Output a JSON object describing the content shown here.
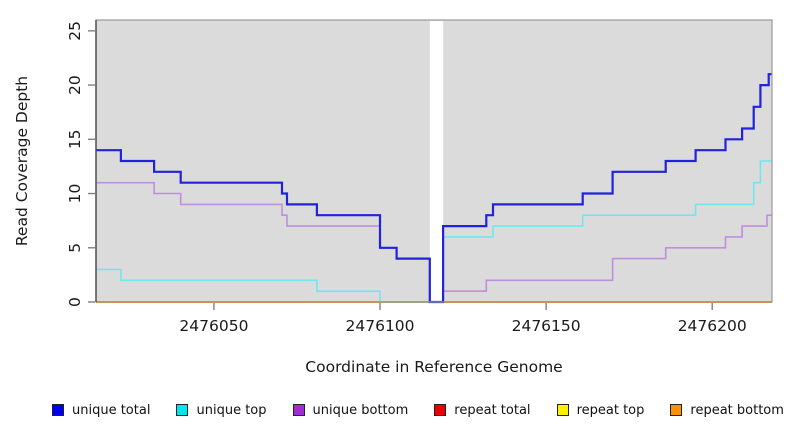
{
  "chart_data": {
    "type": "line",
    "subtype": "step-coverage",
    "title": "",
    "xlabel": "Coordinate in Reference Genome",
    "ylabel": "Read Coverage Depth",
    "x_range": [
      2476014.5,
      2476218
    ],
    "ylim": [
      0,
      26
    ],
    "x_ticks": [
      "2476050",
      "2476100",
      "2476150",
      "2476200"
    ],
    "x_tick_values": [
      2476050,
      2476100,
      2476150,
      2476200
    ],
    "y_ticks": [
      "0",
      "5",
      "10",
      "15",
      "20",
      "25"
    ],
    "y_tick_values": [
      0,
      5,
      10,
      15,
      20,
      25
    ],
    "grid": false,
    "plot_background": "#DBDBDB",
    "frame_color": "#999999",
    "tick_color": "#808080",
    "gap_region": {
      "x_start": 2476115,
      "x_end": 2476119
    },
    "zero_overlap_segment": {
      "x_start": 2476100,
      "x_end": 2476115,
      "y": 0,
      "color": "#7CC87C"
    },
    "series": [
      {
        "name": "unique total",
        "line_color": "#2222DD",
        "legend_color": "#0000EE",
        "width": 2.2,
        "points": [
          [
            2476014.5,
            14
          ],
          [
            2476022,
            13
          ],
          [
            2476032,
            12
          ],
          [
            2476040,
            11
          ],
          [
            2476070.5,
            10
          ],
          [
            2476072,
            9
          ],
          [
            2476081,
            8
          ],
          [
            2476100,
            5
          ],
          [
            2476105,
            4
          ],
          [
            2476115,
            0
          ],
          [
            2476119,
            7
          ],
          [
            2476132,
            8
          ],
          [
            2476134,
            9
          ],
          [
            2476161,
            10
          ],
          [
            2476170,
            12
          ],
          [
            2476186,
            13
          ],
          [
            2476195,
            14
          ],
          [
            2476204,
            15
          ],
          [
            2476209,
            16
          ],
          [
            2476212.5,
            18
          ],
          [
            2476214.5,
            20
          ],
          [
            2476217,
            21
          ]
        ]
      },
      {
        "name": "unique top",
        "line_color": "#70E7EF",
        "legend_color": "#00E5EE",
        "width": 1.6,
        "points": [
          [
            2476014.5,
            3
          ],
          [
            2476022,
            2
          ],
          [
            2476081,
            1
          ],
          [
            2476100,
            0
          ],
          [
            2476119,
            6
          ],
          [
            2476134,
            7
          ],
          [
            2476161,
            8
          ],
          [
            2476195,
            9
          ],
          [
            2476212.5,
            11
          ],
          [
            2476214.5,
            13
          ]
        ]
      },
      {
        "name": "unique bottom",
        "line_color": "#BE8FDE",
        "legend_color": "#A32CD4",
        "width": 1.6,
        "points": [
          [
            2476014.5,
            11
          ],
          [
            2476032,
            10
          ],
          [
            2476040,
            9
          ],
          [
            2476070.5,
            8
          ],
          [
            2476072,
            7
          ],
          [
            2476100,
            5
          ],
          [
            2476105,
            4
          ],
          [
            2476115,
            0
          ],
          [
            2476119,
            1
          ],
          [
            2476132,
            2
          ],
          [
            2476170,
            4
          ],
          [
            2476186,
            5
          ],
          [
            2476204,
            6
          ],
          [
            2476209,
            7
          ],
          [
            2476216.5,
            8
          ]
        ]
      },
      {
        "name": "repeat total",
        "line_color": "#E80000",
        "legend_color": "#E80000",
        "width": 1.5,
        "points": [
          [
            2476014.5,
            0
          ]
        ]
      },
      {
        "name": "repeat top",
        "line_color": "#FFF000",
        "legend_color": "#FFF000",
        "width": 1.5,
        "points": [
          [
            2476014.5,
            0
          ]
        ]
      },
      {
        "name": "repeat bottom",
        "line_color": "#FF9100",
        "legend_color": "#FF9100",
        "width": 2,
        "points": [
          [
            2476014.5,
            0
          ]
        ]
      }
    ]
  },
  "legend": {
    "items": [
      {
        "label": "unique total",
        "color": "#0000EE"
      },
      {
        "label": "unique top",
        "color": "#00E5EE"
      },
      {
        "label": "unique bottom",
        "color": "#A32CD4"
      },
      {
        "label": "repeat total",
        "color": "#E80000"
      },
      {
        "label": "repeat top",
        "color": "#FFF000"
      },
      {
        "label": "repeat bottom",
        "color": "#FF9100"
      }
    ]
  }
}
